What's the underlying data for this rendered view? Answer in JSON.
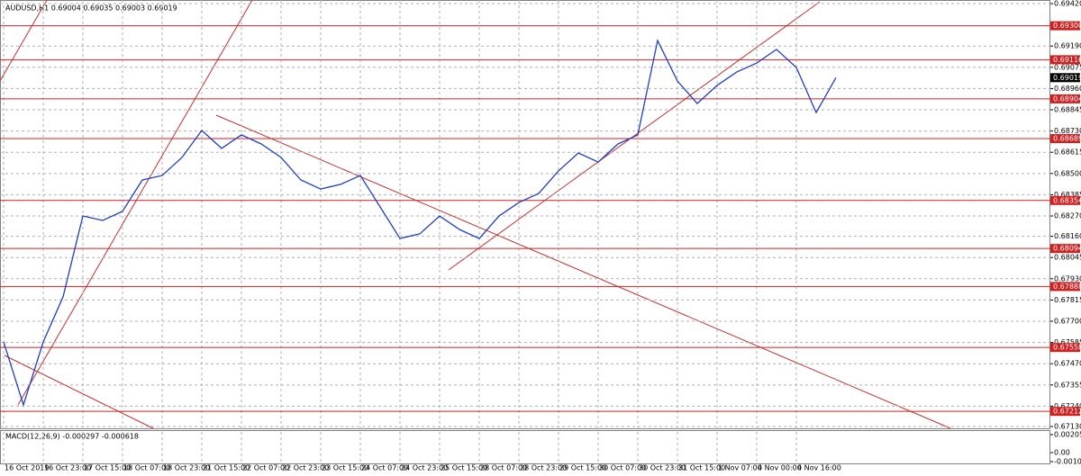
{
  "chart_data": {
    "type": "line",
    "title": "AUDUSD,H1  0.69004 0.69035 0.69003 0.69019",
    "categories": [
      "16 Oct 2019",
      null,
      "16 Oct 23:00",
      null,
      "17 Oct 15:00",
      null,
      "18 Oct 07:00",
      null,
      "18 Oct 23:00",
      null,
      "21 Oct 15:00",
      null,
      "22 Oct 07:00",
      null,
      "22 Oct 23:00",
      null,
      "23 Oct 15:00",
      null,
      "24 Oct 07:00",
      null,
      "24 Oct 23:00",
      null,
      "25 Oct 15:00",
      null,
      "28 Oct 07:00",
      null,
      "28 Oct 23:00",
      null,
      "29 Oct 15:00",
      null,
      "30 Oct 07:00",
      null,
      "30 Oct 23:00",
      null,
      "31 Oct 15:00",
      null,
      "1 Nov 07:00",
      null,
      "4 Nov 00:00",
      null,
      "4 Nov 16:00",
      null,
      null
    ],
    "series": [
      {
        "name": "AUDUSD,H1",
        "color": "#1f3fbf",
        "values": [
          0.67588,
          0.67247,
          0.67588,
          0.67832,
          0.6827,
          0.68246,
          0.68295,
          0.68465,
          0.68489,
          0.68587,
          0.68733,
          0.68636,
          0.68709,
          0.6866,
          0.68587,
          0.68465,
          0.68416,
          0.68441,
          0.68489,
          0.68319,
          0.68148,
          0.68173,
          0.6827,
          0.68197,
          0.68148,
          0.6827,
          0.68343,
          0.68392,
          0.68514,
          0.68611,
          0.68562,
          0.6866,
          0.68709,
          0.6922,
          0.69001,
          0.68879,
          0.68977,
          0.6905,
          0.69098,
          0.69172,
          0.69074,
          0.6883,
          0.69019
        ]
      }
    ],
    "ylim": [
      0.6713,
      0.6942
    ],
    "yticks": [
      {
        "value": 0.6942,
        "label": "0.69420"
      },
      {
        "value": 0.6919,
        "label": "0.69190"
      },
      {
        "value": 0.69075,
        "label": "0.69075"
      },
      {
        "value": 0.6896,
        "label": "0.68960"
      },
      {
        "value": 0.68845,
        "label": "0.68845"
      },
      {
        "value": 0.6873,
        "label": "0.68730"
      },
      {
        "value": 0.68615,
        "label": "0.68615"
      },
      {
        "value": 0.685,
        "label": "0.68500"
      },
      {
        "value": 0.68385,
        "label": "0.68385"
      },
      {
        "value": 0.6827,
        "label": "0.68270"
      },
      {
        "value": 0.6816,
        "label": "0.68160"
      },
      {
        "value": 0.68045,
        "label": "0.68045"
      },
      {
        "value": 0.6793,
        "label": "0.67930"
      },
      {
        "value": 0.67815,
        "label": "0.67815"
      },
      {
        "value": 0.677,
        "label": "0.67700"
      },
      {
        "value": 0.67585,
        "label": "0.67585"
      },
      {
        "value": 0.6747,
        "label": "0.67470"
      },
      {
        "value": 0.67355,
        "label": "0.67355"
      },
      {
        "value": 0.6724,
        "label": "0.67240"
      },
      {
        "value": 0.6713,
        "label": "0.67130"
      }
    ],
    "levels": [
      0.693,
      0.69116,
      0.68904,
      0.68689,
      0.68354,
      0.68094,
      0.67888,
      0.67558,
      0.67212
    ],
    "level_labels": [
      "0.69300",
      "0.69116",
      "0.68904",
      "0.68689",
      "0.68354",
      "0.68094",
      "0.67888",
      "0.67558",
      "0.67212"
    ],
    "level_color": "#d02020",
    "last_price": 0.69019,
    "last_price_label": "0.69019",
    "grid": true,
    "macd": {
      "title": "MACD(12,26,9) -0.000297 -0.000618",
      "ylim": [
        -0.001021,
        0.002056
      ],
      "yticks": [
        0.002056,
        {
          "value": 0,
          "label": "0.00"
        },
        -0.001021
      ]
    }
  }
}
